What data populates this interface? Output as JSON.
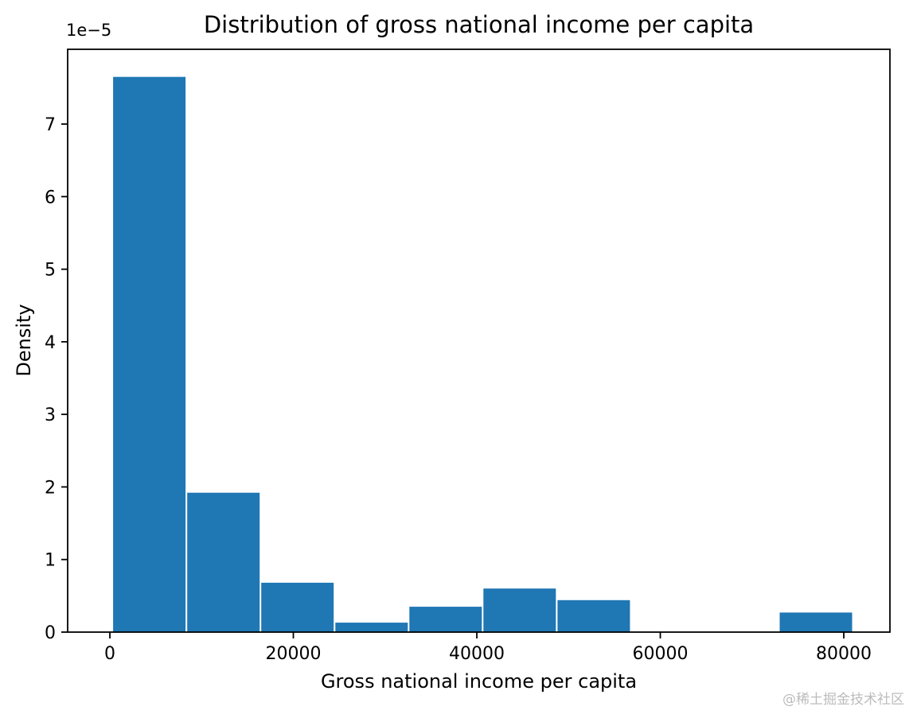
{
  "chart_data": {
    "type": "bar",
    "subtype": "histogram",
    "title": "Distribution of gross national income per capita",
    "xlabel": "Gross national income per capita",
    "ylabel": "Density",
    "y_offset_text": "1e−5",
    "bar_color": "#1f77b4",
    "bins": [
      270,
      8343,
      16416,
      24489,
      32562,
      40635,
      48708,
      56781,
      64854,
      72927,
      81000
    ],
    "densities_1e5": [
      7.65,
      1.92,
      0.68,
      0.13,
      0.35,
      0.6,
      0.44,
      0,
      0,
      0.27
    ],
    "density_scale": "1e-5",
    "xlim": [
      -4600,
      85030
    ],
    "ylim": [
      0,
      8.03
    ],
    "xticks": [
      0,
      20000,
      40000,
      60000,
      80000
    ],
    "xtick_labels": [
      "0",
      "20000",
      "40000",
      "60000",
      "80000"
    ],
    "yticks": [
      0,
      1,
      2,
      3,
      4,
      5,
      6,
      7
    ],
    "ytick_labels": [
      "0",
      "1",
      "2",
      "3",
      "4",
      "5",
      "6",
      "7"
    ],
    "grid": false,
    "legend_position": "none"
  },
  "watermark": {
    "text": "@稀土掘金技术社区"
  }
}
